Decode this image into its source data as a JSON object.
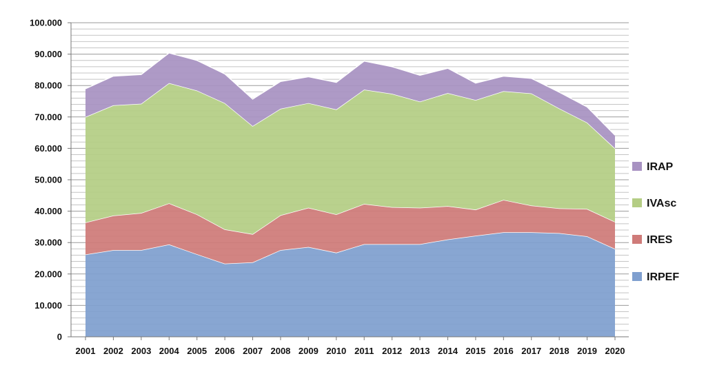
{
  "chart_data": {
    "type": "area",
    "stacked": true,
    "grid": true,
    "legend_position": "right",
    "title": "",
    "xlabel": "",
    "ylabel": "",
    "ylim": [
      0,
      100000
    ],
    "y_ticks": [
      "0",
      "10.000",
      "20.000",
      "30.000",
      "40.000",
      "50.000",
      "60.000",
      "70.000",
      "80.000",
      "90.000",
      "100.000"
    ],
    "categories": [
      "2001",
      "2002",
      "2003",
      "2004",
      "2005",
      "2006",
      "2007",
      "2008",
      "2009",
      "2010",
      "2011",
      "2012",
      "2013",
      "2014",
      "2015",
      "2016",
      "2017",
      "2018",
      "2019",
      "2020"
    ],
    "series": [
      {
        "name": "IRPEF",
        "color": "#7f9fcf",
        "values": [
          26200,
          27600,
          27600,
          29400,
          26300,
          23300,
          23700,
          27600,
          28600,
          26800,
          29500,
          29500,
          29500,
          31000,
          32200,
          33300,
          33300,
          33000,
          32000,
          28000
        ]
      },
      {
        "name": "IRES",
        "color": "#cf7b79",
        "values": [
          10200,
          11000,
          11800,
          13100,
          12700,
          10900,
          9000,
          11100,
          12500,
          12200,
          12800,
          11800,
          11600,
          10600,
          8300,
          10300,
          8500,
          7900,
          8700,
          8600
        ]
      },
      {
        "name": "IVAsc",
        "color": "#b4cd84",
        "values": [
          33600,
          35100,
          34800,
          38300,
          39400,
          40200,
          34400,
          33900,
          33300,
          33400,
          36400,
          36100,
          33800,
          36000,
          34900,
          34600,
          35700,
          31800,
          27500,
          23400
        ]
      },
      {
        "name": "IRAP",
        "color": "#a892c2",
        "values": [
          9000,
          9300,
          9300,
          9600,
          9600,
          9300,
          8600,
          8700,
          8400,
          8600,
          9100,
          8600,
          8400,
          7900,
          5400,
          4800,
          4800,
          5200,
          5000,
          4200
        ]
      }
    ]
  }
}
